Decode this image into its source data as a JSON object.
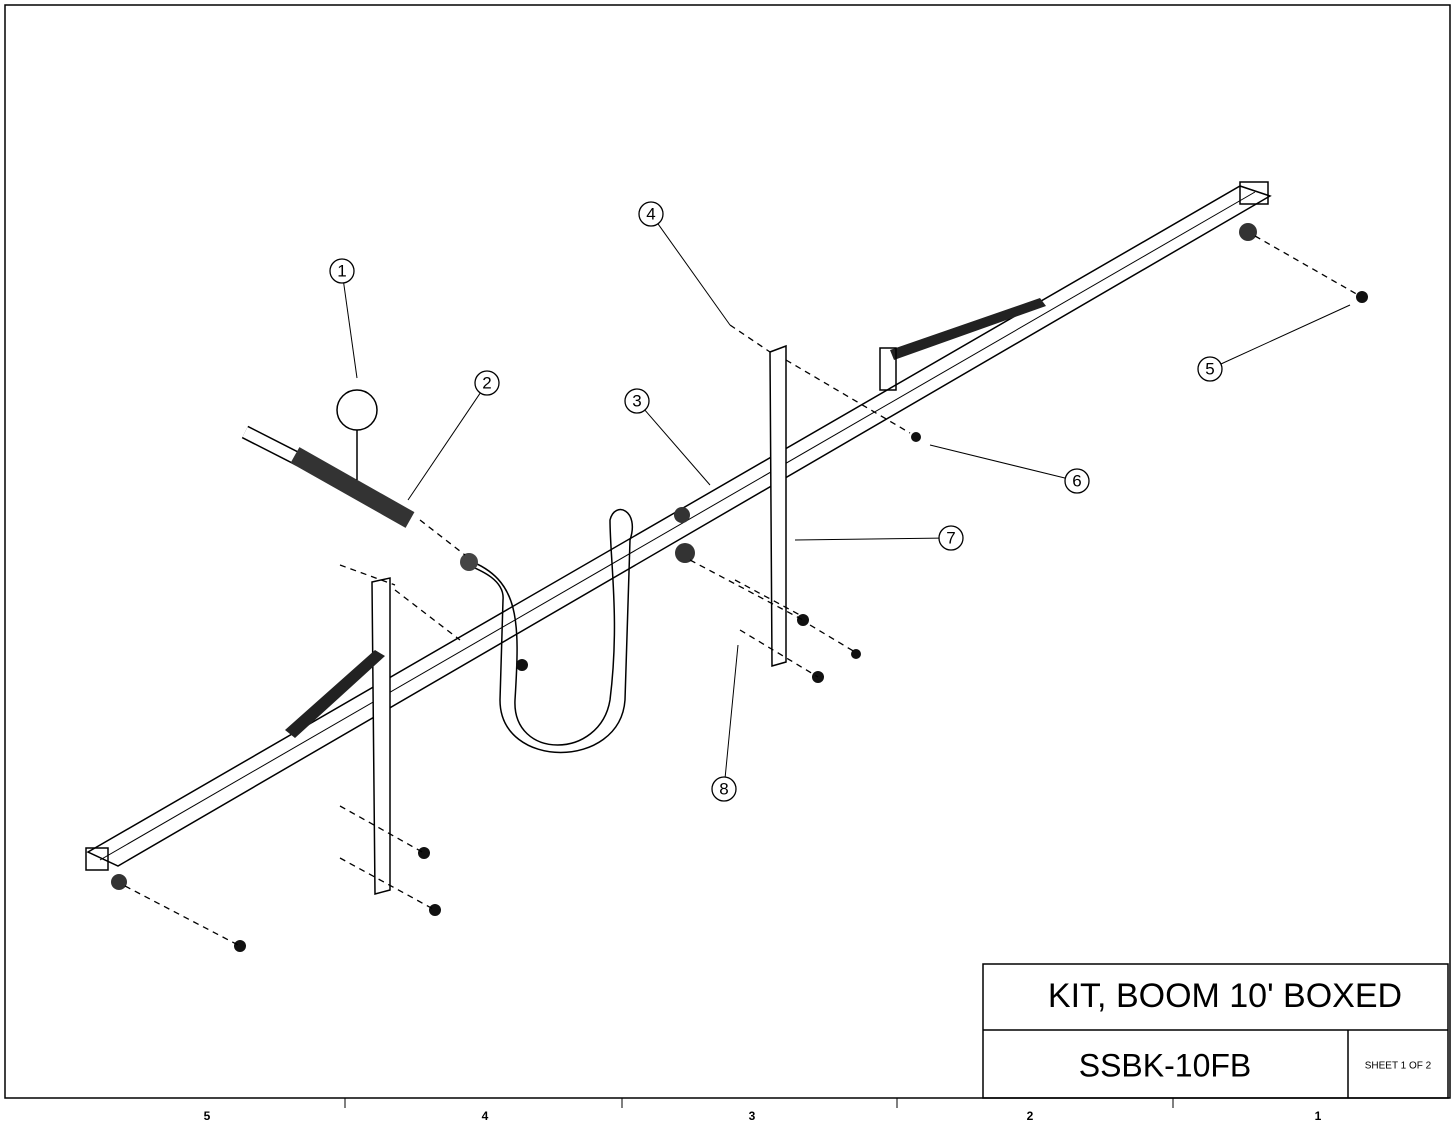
{
  "balloons": [
    "1",
    "2",
    "3",
    "4",
    "5",
    "6",
    "7",
    "8"
  ],
  "title_block": {
    "title": "KIT, BOOM 10' BOXED",
    "part_number": "SSBK-10FB",
    "sheet": "SHEET 1 OF 2"
  },
  "zones": [
    "5",
    "4",
    "3",
    "2",
    "1"
  ]
}
